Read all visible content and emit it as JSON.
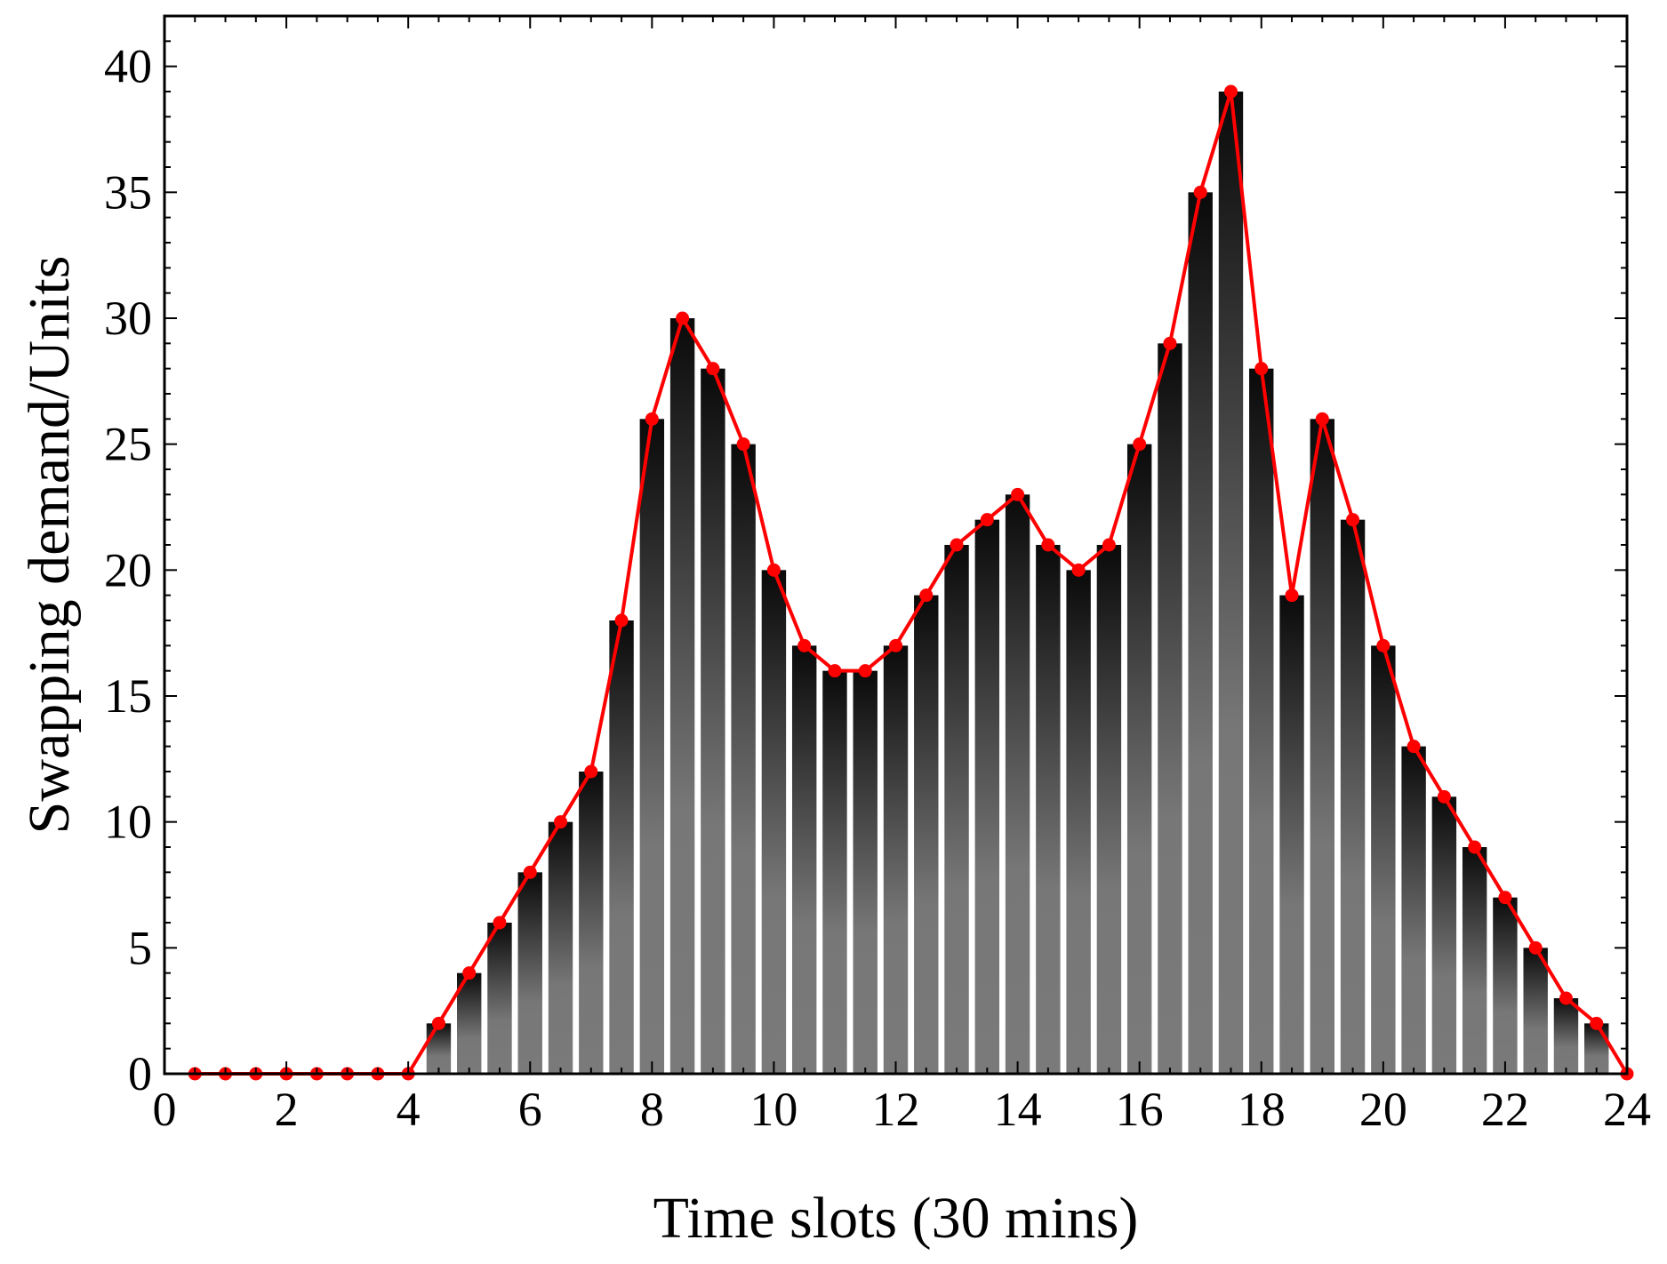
{
  "chart_data": {
    "type": "bar",
    "title": "",
    "xlabel": "Time slots (30 mins)",
    "ylabel": "Swapping demand/Units",
    "xlim": [
      0,
      24
    ],
    "ylim": [
      0,
      42
    ],
    "grid": false,
    "legend": "none",
    "x_ticks": [
      "0",
      "2",
      "4",
      "6",
      "8",
      "10",
      "12",
      "14",
      "16",
      "18",
      "20",
      "22",
      "24"
    ],
    "y_ticks": [
      "0",
      "5",
      "10",
      "15",
      "20",
      "25",
      "30",
      "35",
      "40"
    ],
    "bar_width": 0.4,
    "x": [
      0.5,
      1,
      1.5,
      2,
      2.5,
      3,
      3.5,
      4,
      4.5,
      5,
      5.5,
      6,
      6.5,
      7,
      7.5,
      8,
      8.5,
      9,
      9.5,
      10,
      10.5,
      11,
      11.5,
      12,
      12.5,
      13,
      13.5,
      14,
      14.5,
      15,
      15.5,
      16,
      16.5,
      17,
      17.5,
      18,
      18.5,
      19,
      19.5,
      20,
      20.5,
      21,
      21.5,
      22,
      22.5,
      23,
      23.5,
      24
    ],
    "values": [
      0,
      0,
      0,
      0,
      0,
      0,
      0,
      0,
      2,
      4,
      6,
      8,
      10,
      12,
      18,
      26,
      30,
      28,
      25,
      20,
      17,
      16,
      16,
      17,
      19,
      21,
      22,
      23,
      21,
      20,
      21,
      25,
      29,
      35,
      39,
      28,
      19,
      26,
      22,
      17,
      13,
      11,
      9,
      7,
      5,
      3,
      2,
      0
    ],
    "colors": {
      "bar_top": "#0a0a0a",
      "bar_bottom": "#7a7a7a",
      "line": "#ff0000",
      "frame": "#000000"
    }
  }
}
